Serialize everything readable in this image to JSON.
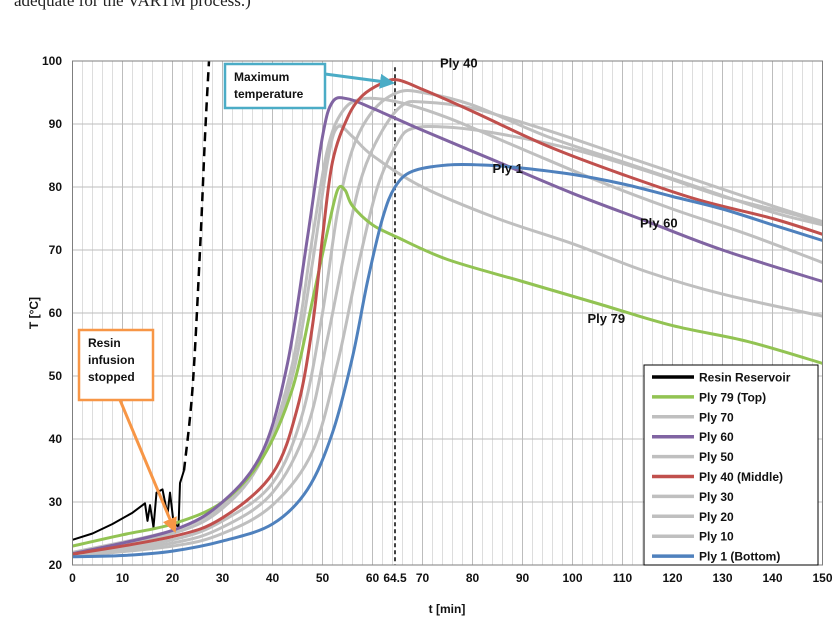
{
  "caption": "adequate for the VARTM process.)",
  "chart_data": {
    "type": "line",
    "xlabel": "t [min]",
    "ylabel": "T [°C]",
    "xlim": [
      0,
      150
    ],
    "ylim": [
      20,
      100
    ],
    "xticks": [
      0,
      10,
      20,
      30,
      40,
      50,
      60,
      70,
      80,
      90,
      100,
      110,
      120,
      130,
      140,
      150
    ],
    "yticks": [
      20,
      30,
      40,
      50,
      60,
      70,
      80,
      90,
      100
    ],
    "grid": true,
    "legend_position": "bottom-right",
    "vline": {
      "x": 64.5,
      "label": "64.5"
    },
    "series": [
      {
        "name": "Resin Reservoir",
        "color": "#000000",
        "points": [
          [
            0,
            24
          ],
          [
            4,
            25
          ],
          [
            8,
            26.5
          ],
          [
            12,
            28.3
          ],
          [
            14.5,
            29.8
          ],
          [
            15,
            27
          ],
          [
            15.5,
            29.5
          ],
          [
            16.2,
            26
          ],
          [
            16.8,
            31.5
          ],
          [
            18,
            32
          ],
          [
            19,
            28
          ],
          [
            19.5,
            31.5
          ],
          [
            20.2,
            26.8
          ],
          [
            21.2,
            26
          ],
          [
            21.5,
            33
          ],
          [
            22.3,
            35
          ]
        ],
        "extension": [
          [
            22.3,
            35
          ],
          [
            24,
            48
          ],
          [
            25.5,
            70
          ],
          [
            26.5,
            88
          ],
          [
            27.3,
            100
          ]
        ]
      },
      {
        "name": "Ply 79 (Top)",
        "color": "#92c353",
        "points": [
          [
            0,
            23
          ],
          [
            10,
            24.8
          ],
          [
            20,
            26.5
          ],
          [
            30,
            30
          ],
          [
            38,
            37
          ],
          [
            44,
            48
          ],
          [
            48,
            62
          ],
          [
            51,
            73
          ],
          [
            53,
            79.5
          ],
          [
            54.5,
            79.5
          ],
          [
            56,
            77
          ],
          [
            60,
            74
          ],
          [
            65,
            72
          ],
          [
            75,
            68.5
          ],
          [
            90,
            65
          ],
          [
            105,
            61.5
          ],
          [
            120,
            58
          ],
          [
            135,
            55.5
          ],
          [
            150,
            52
          ]
        ]
      },
      {
        "name": "Ply 70",
        "color": "#bfbfbf",
        "points": [
          [
            0,
            22
          ],
          [
            20,
            25.5
          ],
          [
            30,
            29.5
          ],
          [
            38,
            37
          ],
          [
            44,
            50
          ],
          [
            48,
            68
          ],
          [
            51,
            84
          ],
          [
            53,
            89.5
          ],
          [
            56,
            88
          ],
          [
            60,
            85
          ],
          [
            70,
            80
          ],
          [
            85,
            75
          ],
          [
            100,
            71
          ],
          [
            115,
            66.5
          ],
          [
            130,
            63
          ],
          [
            150,
            59.5
          ]
        ]
      },
      {
        "name": "Ply 60",
        "color": "#8064a2",
        "points": [
          [
            0,
            21.8
          ],
          [
            20,
            25.5
          ],
          [
            30,
            30
          ],
          [
            38,
            38
          ],
          [
            43,
            52
          ],
          [
            47,
            72
          ],
          [
            50,
            88
          ],
          [
            52,
            93.5
          ],
          [
            55,
            94
          ],
          [
            60,
            92.5
          ],
          [
            70,
            89
          ],
          [
            85,
            84
          ],
          [
            100,
            79
          ],
          [
            115,
            74.5
          ],
          [
            130,
            70
          ],
          [
            150,
            65
          ]
        ]
      },
      {
        "name": "Ply 50",
        "color": "#bfbfbf",
        "points": [
          [
            0,
            21.8
          ],
          [
            20,
            25
          ],
          [
            30,
            29
          ],
          [
            38,
            37
          ],
          [
            44,
            52
          ],
          [
            48,
            72
          ],
          [
            51,
            86
          ],
          [
            54,
            92
          ],
          [
            58,
            94
          ],
          [
            65,
            93.5
          ],
          [
            75,
            91
          ],
          [
            90,
            86
          ],
          [
            105,
            81
          ],
          [
            120,
            76.5
          ],
          [
            135,
            72.5
          ],
          [
            150,
            68
          ]
        ]
      },
      {
        "name": "Ply 40 (Middle)",
        "color": "#c0504d",
        "points": [
          [
            0,
            21.7
          ],
          [
            20,
            24.5
          ],
          [
            30,
            27.5
          ],
          [
            40,
            34.5
          ],
          [
            45,
            45
          ],
          [
            48,
            58
          ],
          [
            50,
            72
          ],
          [
            52,
            84
          ],
          [
            55,
            91
          ],
          [
            58,
            94.5
          ],
          [
            62,
            96.5
          ],
          [
            65,
            97
          ],
          [
            70,
            95.5
          ],
          [
            80,
            92
          ],
          [
            95,
            86.5
          ],
          [
            110,
            82
          ],
          [
            125,
            78
          ],
          [
            140,
            75
          ],
          [
            150,
            72.5
          ]
        ]
      },
      {
        "name": "Ply 30",
        "color": "#bfbfbf",
        "points": [
          [
            0,
            21.6
          ],
          [
            20,
            24
          ],
          [
            30,
            27
          ],
          [
            40,
            33
          ],
          [
            46,
            44
          ],
          [
            50,
            60
          ],
          [
            53,
            76
          ],
          [
            56,
            86
          ],
          [
            60,
            92
          ],
          [
            65,
            95
          ],
          [
            70,
            95
          ],
          [
            80,
            93
          ],
          [
            95,
            88
          ],
          [
            110,
            84
          ],
          [
            125,
            80
          ],
          [
            140,
            76
          ],
          [
            150,
            74
          ]
        ]
      },
      {
        "name": "Ply 20",
        "color": "#bfbfbf",
        "points": [
          [
            0,
            21.5
          ],
          [
            20,
            23.5
          ],
          [
            30,
            26
          ],
          [
            40,
            31.5
          ],
          [
            47,
            42
          ],
          [
            51,
            56
          ],
          [
            55,
            72
          ],
          [
            58,
            82
          ],
          [
            62,
            89
          ],
          [
            66,
            93
          ],
          [
            70,
            93.5
          ],
          [
            80,
            92.5
          ],
          [
            95,
            89
          ],
          [
            110,
            85
          ],
          [
            125,
            81
          ],
          [
            140,
            77
          ],
          [
            150,
            74.5
          ]
        ]
      },
      {
        "name": "Ply 10",
        "color": "#bfbfbf",
        "points": [
          [
            0,
            21.4
          ],
          [
            20,
            23
          ],
          [
            30,
            25
          ],
          [
            40,
            29.5
          ],
          [
            48,
            38
          ],
          [
            53,
            52
          ],
          [
            57,
            67
          ],
          [
            61,
            80
          ],
          [
            65,
            87
          ],
          [
            68,
            89.3
          ],
          [
            75,
            89.5
          ],
          [
            85,
            88.5
          ],
          [
            100,
            86
          ],
          [
            115,
            82.5
          ],
          [
            130,
            78.5
          ],
          [
            145,
            75.5
          ],
          [
            150,
            74
          ]
        ]
      },
      {
        "name": "Ply 1 (Bottom)",
        "color": "#4f81bd",
        "points": [
          [
            0,
            21.3
          ],
          [
            10,
            21.5
          ],
          [
            20,
            22.2
          ],
          [
            30,
            23.8
          ],
          [
            40,
            26.5
          ],
          [
            47,
            32
          ],
          [
            52,
            41
          ],
          [
            56,
            53
          ],
          [
            59,
            65
          ],
          [
            62,
            75
          ],
          [
            64.5,
            80
          ],
          [
            68,
            82.5
          ],
          [
            75,
            83.5
          ],
          [
            82,
            83.5
          ],
          [
            90,
            83
          ],
          [
            100,
            82
          ],
          [
            110,
            80.5
          ],
          [
            120,
            78.5
          ],
          [
            130,
            76.5
          ],
          [
            140,
            74
          ],
          [
            150,
            71.5
          ]
        ]
      }
    ],
    "annotations": [
      {
        "id": "maximum-temperature",
        "text": [
          "Maximum",
          "temperature"
        ],
        "border_color": "#4bacc6",
        "target": [
          64.5,
          97
        ]
      },
      {
        "id": "resin-infusion-stopped",
        "text": [
          "Resin",
          "infusion",
          "stopped"
        ],
        "border_color": "#f79646",
        "target": [
          21,
          26
        ]
      }
    ],
    "curve_labels": [
      {
        "text": "Ply 40",
        "x": 73.5,
        "y": 99
      },
      {
        "text": "Ply 1",
        "x": 84,
        "y": 82.2
      },
      {
        "text": "Ply 60",
        "x": 113.5,
        "y": 73.6
      },
      {
        "text": "Ply 79",
        "x": 103,
        "y": 58.4
      }
    ]
  }
}
